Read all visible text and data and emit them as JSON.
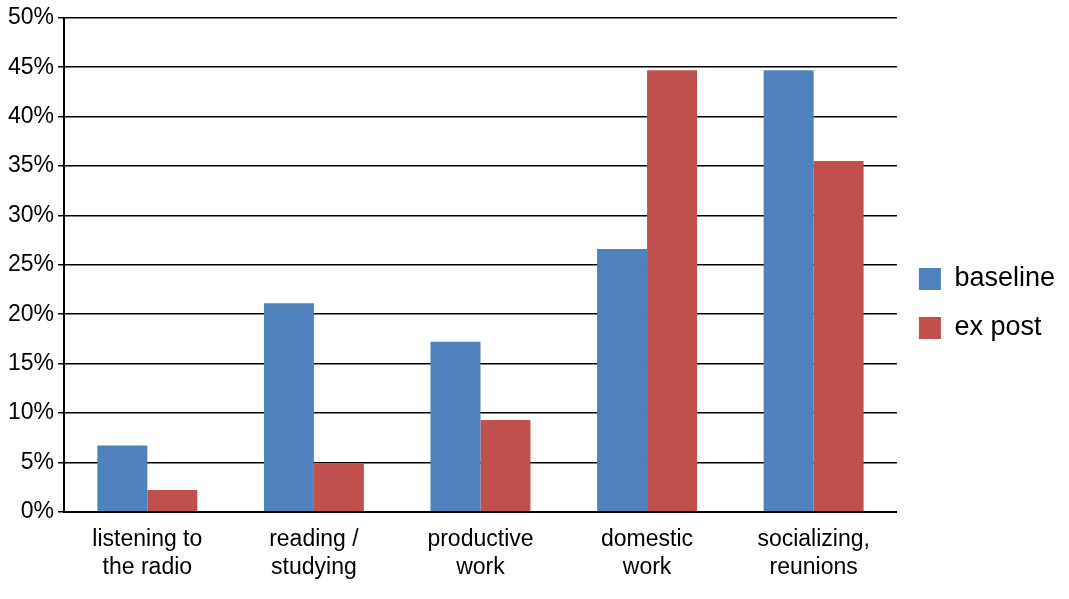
{
  "chart_data": {
    "type": "bar",
    "categories": [
      "listening to the radio",
      "reading / studying",
      "productive work",
      "domestic work",
      "socializing, reunions"
    ],
    "series": [
      {
        "name": "baseline",
        "color": "#4f81bd",
        "values": [
          6.7,
          21.1,
          17.2,
          26.6,
          44.7
        ]
      },
      {
        "name": "ex post",
        "color": "#c0504d",
        "values": [
          2.2,
          4.9,
          9.3,
          44.7,
          35.5
        ]
      }
    ],
    "ylim": [
      0,
      50
    ],
    "yticks": [
      {
        "value": 0,
        "label": "0%"
      },
      {
        "value": 5,
        "label": "5%"
      },
      {
        "value": 10,
        "label": "10%"
      },
      {
        "value": 15,
        "label": "15%"
      },
      {
        "value": 20,
        "label": "20%"
      },
      {
        "value": 25,
        "label": "25%"
      },
      {
        "value": 30,
        "label": "30%"
      },
      {
        "value": 35,
        "label": "35%"
      },
      {
        "value": 40,
        "label": "40%"
      },
      {
        "value": 45,
        "label": "45%"
      },
      {
        "value": 50,
        "label": "50%"
      }
    ],
    "grid": "y",
    "legend": "right"
  }
}
